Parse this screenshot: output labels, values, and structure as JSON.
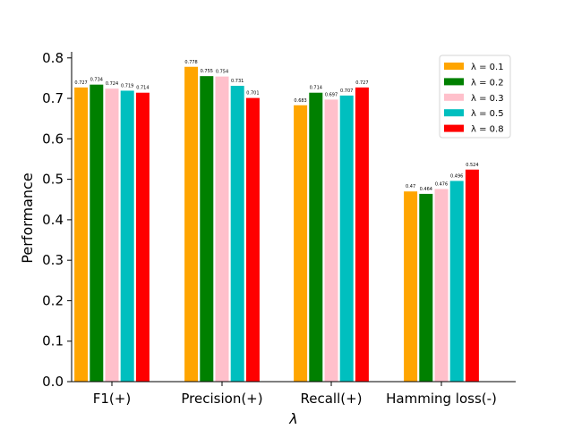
{
  "chart_data": {
    "type": "bar",
    "xlabel": "λ",
    "ylabel": "Performance",
    "ylim": [
      0,
      0.815
    ],
    "yticks": [
      "0.0",
      "0.1",
      "0.2",
      "0.3",
      "0.4",
      "0.5",
      "0.6",
      "0.7",
      "0.8"
    ],
    "categories": [
      "F1(+)",
      "Precision(+)",
      "Recall(+)",
      "Hamming loss(-)"
    ],
    "legend_position": "top-right",
    "grid": false,
    "series": [
      {
        "name": "λ = 0.1",
        "color": "#FFA500",
        "values": [
          0.727,
          0.778,
          0.683,
          0.47
        ]
      },
      {
        "name": "λ = 0.2",
        "color": "#008000",
        "values": [
          0.734,
          0.755,
          0.714,
          0.464
        ]
      },
      {
        "name": "λ = 0.3",
        "color": "#FFC0CB",
        "values": [
          0.724,
          0.754,
          0.697,
          0.476
        ]
      },
      {
        "name": "λ = 0.5",
        "color": "#00BFBF",
        "values": [
          0.719,
          0.731,
          0.707,
          0.496
        ]
      },
      {
        "name": "λ = 0.8",
        "color": "#FF0000",
        "values": [
          0.714,
          0.701,
          0.727,
          0.524
        ]
      }
    ]
  }
}
